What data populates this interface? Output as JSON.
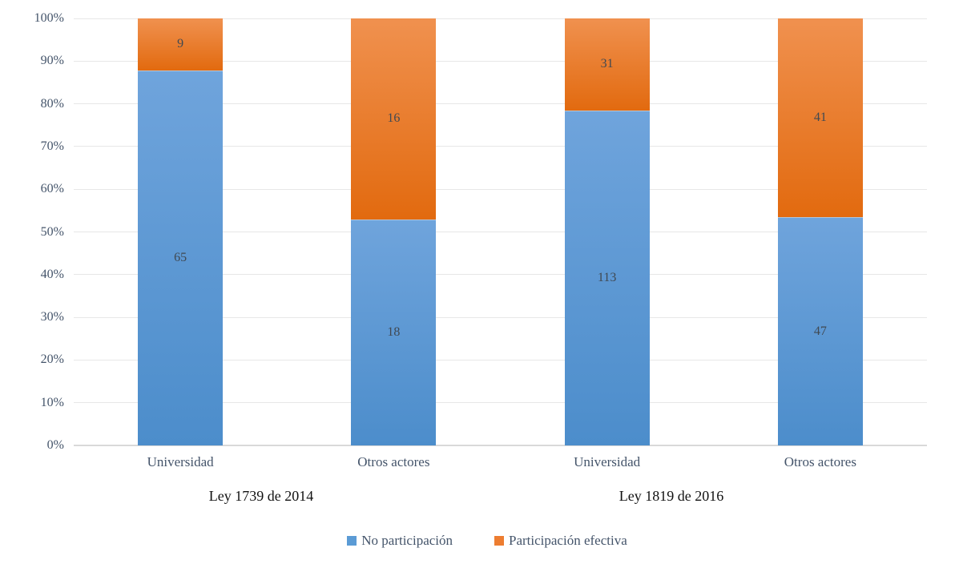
{
  "chart_data": {
    "type": "bar",
    "subtype": "stacked-100-percent",
    "title": "",
    "xlabel": "",
    "ylabel": "",
    "categories": [
      "Universidad",
      "Otros actores",
      "Universidad",
      "Otros actores"
    ],
    "groups": [
      {
        "label": "Ley 1739 de 2014",
        "span": [
          0,
          1
        ]
      },
      {
        "label": "Ley 1819 de 2016",
        "span": [
          2,
          3
        ]
      }
    ],
    "series": [
      {
        "name": "No participación",
        "values": [
          65,
          18,
          113,
          47
        ],
        "color": "#5B9BD5",
        "gradient_top": "#6FA4DC",
        "gradient_bottom": "#4C8DCB"
      },
      {
        "name": "Participación efectiva",
        "values": [
          9,
          16,
          31,
          41
        ],
        "color": "#ED7D31",
        "gradient_top": "#F0914F",
        "gradient_bottom": "#E26A0F"
      }
    ],
    "y_axis": {
      "min": 0,
      "max": 100,
      "tick_step": 10,
      "tick_labels": [
        "0%",
        "10%",
        "20%",
        "30%",
        "40%",
        "50%",
        "60%",
        "70%",
        "80%",
        "90%",
        "100%"
      ],
      "grid": true
    },
    "legend": {
      "position": "bottom",
      "entries": [
        "No participación",
        "Participación efectiva"
      ]
    },
    "styles": {
      "background": "#FFFFFF",
      "gridline_color": "#E7E7E7",
      "axis_line_color": "#D9D9D9",
      "tick_label_color": "#44546A",
      "category_label_color": "#44546A",
      "group_label_color": "#111111",
      "data_label_color": "#404952",
      "legend_text_color": "#44546A"
    }
  }
}
